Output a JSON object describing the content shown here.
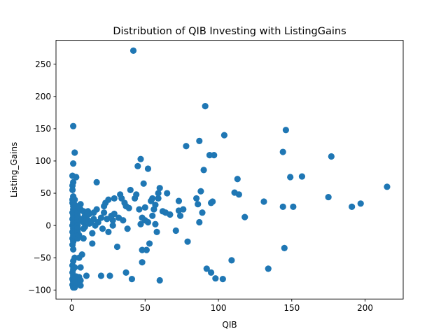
{
  "chart_data": {
    "type": "scatter",
    "title": "Distribution of QIB Investing with ListingGains",
    "xlabel": "QIB",
    "ylabel": "Listing_Gains",
    "xlim": [
      -10.75,
      226
    ],
    "ylim": [
      -114,
      287
    ],
    "xticks": [
      0,
      50,
      100,
      150,
      200
    ],
    "yticks": [
      -100,
      -50,
      0,
      50,
      100,
      150,
      200,
      250
    ],
    "grid": false,
    "color": "#1f77b4",
    "series": [
      {
        "points": [
          [
            1,
            154
          ],
          [
            0.5,
            77
          ],
          [
            1,
            96
          ],
          [
            2,
            113
          ],
          [
            3,
            75
          ],
          [
            1,
            67
          ],
          [
            0.5,
            62
          ],
          [
            0.5,
            55
          ],
          [
            1,
            45
          ],
          [
            0.5,
            40
          ],
          [
            0.5,
            35
          ],
          [
            1,
            30
          ],
          [
            1,
            25
          ],
          [
            0.5,
            20
          ],
          [
            1,
            15
          ],
          [
            0.5,
            10
          ],
          [
            1,
            5
          ],
          [
            0.5,
            0
          ],
          [
            1,
            -5
          ],
          [
            0.5,
            -10
          ],
          [
            1,
            -15
          ],
          [
            0.5,
            -20
          ],
          [
            1,
            -25
          ],
          [
            0.5,
            -30
          ],
          [
            1,
            -37
          ],
          [
            2,
            -50
          ],
          [
            1,
            -55
          ],
          [
            0.5,
            -62
          ],
          [
            1,
            -68
          ],
          [
            0.5,
            -73
          ],
          [
            1,
            -78
          ],
          [
            0.5,
            -83
          ],
          [
            1,
            -87
          ],
          [
            0.5,
            -92
          ],
          [
            1,
            -96
          ],
          [
            2,
            -96
          ],
          [
            3,
            -92
          ],
          [
            3,
            -88
          ],
          [
            2,
            -84
          ],
          [
            3,
            -79
          ],
          [
            2,
            -65
          ],
          [
            2,
            32
          ],
          [
            2,
            28
          ],
          [
            3,
            22
          ],
          [
            3,
            18
          ],
          [
            3,
            12
          ],
          [
            3,
            8
          ],
          [
            3,
            3
          ],
          [
            3,
            -3
          ],
          [
            3,
            -8
          ],
          [
            2,
            -12
          ],
          [
            3,
            -18
          ],
          [
            2,
            40
          ],
          [
            4,
            20
          ],
          [
            4,
            15
          ],
          [
            4,
            10
          ],
          [
            4,
            5
          ],
          [
            4,
            0
          ],
          [
            4,
            -5
          ],
          [
            4,
            -10
          ],
          [
            4,
            -20
          ],
          [
            5,
            30
          ],
          [
            5,
            -15
          ],
          [
            5,
            -50
          ],
          [
            5,
            -80
          ],
          [
            6,
            33
          ],
          [
            6,
            25
          ],
          [
            6,
            -65
          ],
          [
            6,
            -85
          ],
          [
            6,
            -93
          ],
          [
            7,
            -45
          ],
          [
            7,
            10
          ],
          [
            8,
            22
          ],
          [
            8,
            5
          ],
          [
            8,
            -5
          ],
          [
            8,
            -20
          ],
          [
            9,
            15
          ],
          [
            9,
            -2
          ],
          [
            10,
            12
          ],
          [
            10,
            -78
          ],
          [
            11,
            22
          ],
          [
            11,
            8
          ],
          [
            12,
            18
          ],
          [
            12,
            3
          ],
          [
            13,
            6
          ],
          [
            14,
            -28
          ],
          [
            14,
            -12
          ],
          [
            15,
            20
          ],
          [
            15,
            10
          ],
          [
            16,
            0
          ],
          [
            17,
            25
          ],
          [
            17,
            67
          ],
          [
            18,
            5
          ],
          [
            20,
            12
          ],
          [
            20,
            -78
          ],
          [
            21,
            -5
          ],
          [
            22,
            30
          ],
          [
            22,
            20
          ],
          [
            23,
            35
          ],
          [
            24,
            10
          ],
          [
            25,
            40
          ],
          [
            25,
            -10
          ],
          [
            26,
            -78
          ],
          [
            27,
            15
          ],
          [
            28,
            8
          ],
          [
            28,
            0
          ],
          [
            29,
            42
          ],
          [
            29,
            18
          ],
          [
            31,
            -33
          ],
          [
            32,
            12
          ],
          [
            33,
            48
          ],
          [
            34,
            42
          ],
          [
            35,
            8
          ],
          [
            36,
            35
          ],
          [
            37,
            30
          ],
          [
            37,
            -73
          ],
          [
            38,
            -5
          ],
          [
            39,
            27
          ],
          [
            40,
            55
          ],
          [
            41,
            -83
          ],
          [
            42,
            271
          ],
          [
            43,
            42
          ],
          [
            44,
            48
          ],
          [
            45,
            92
          ],
          [
            46,
            25
          ],
          [
            47,
            2
          ],
          [
            47,
            103
          ],
          [
            48,
            12
          ],
          [
            48,
            -38
          ],
          [
            48,
            -57
          ],
          [
            49,
            65
          ],
          [
            50,
            28
          ],
          [
            50,
            8
          ],
          [
            51,
            -38
          ],
          [
            52,
            88
          ],
          [
            52,
            5
          ],
          [
            53,
            -28
          ],
          [
            54,
            38
          ],
          [
            55,
            15
          ],
          [
            55,
            42
          ],
          [
            56,
            25
          ],
          [
            57,
            32
          ],
          [
            57,
            2
          ],
          [
            58,
            -10
          ],
          [
            59,
            50
          ],
          [
            59,
            42
          ],
          [
            60,
            58
          ],
          [
            60,
            -85
          ],
          [
            62,
            22
          ],
          [
            64,
            20
          ],
          [
            65,
            50
          ],
          [
            67,
            17
          ],
          [
            71,
            -8
          ],
          [
            73,
            38
          ],
          [
            73,
            23
          ],
          [
            74,
            15
          ],
          [
            76,
            25
          ],
          [
            78,
            123
          ],
          [
            79,
            -25
          ],
          [
            85,
            42
          ],
          [
            86,
            33
          ],
          [
            87,
            5
          ],
          [
            87,
            131
          ],
          [
            88,
            53
          ],
          [
            89,
            20
          ],
          [
            90,
            86
          ],
          [
            91,
            185
          ],
          [
            92,
            -67
          ],
          [
            94,
            109
          ],
          [
            95,
            35
          ],
          [
            95,
            -73
          ],
          [
            96,
            37
          ],
          [
            97,
            109
          ],
          [
            98,
            -82
          ],
          [
            103,
            -83
          ],
          [
            104,
            140
          ],
          [
            109,
            -54
          ],
          [
            111,
            51
          ],
          [
            113,
            72
          ],
          [
            114,
            48
          ],
          [
            118,
            13
          ],
          [
            131,
            37
          ],
          [
            134,
            -67
          ],
          [
            144,
            114
          ],
          [
            144,
            29
          ],
          [
            145,
            -35
          ],
          [
            146,
            148
          ],
          [
            149,
            75
          ],
          [
            151,
            29
          ],
          [
            157,
            76
          ],
          [
            175,
            44
          ],
          [
            177,
            107
          ],
          [
            191,
            29
          ],
          [
            197,
            34
          ],
          [
            215,
            60
          ]
        ]
      }
    ]
  }
}
